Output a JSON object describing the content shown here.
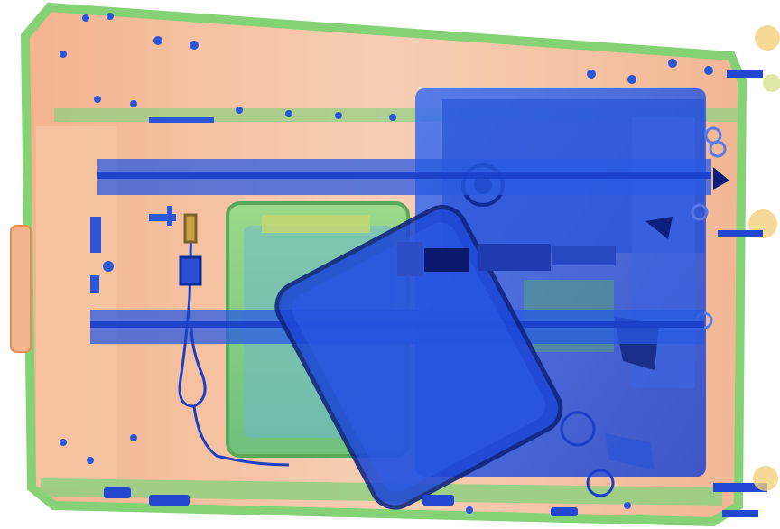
{
  "image": {
    "kind": "x-ray-baggage-scan",
    "palette": {
      "background": "#ffffff",
      "organic_orange": "#f2b48f",
      "organic_light": "#f8d8c0",
      "mixed_green": "#8fd080",
      "metal_blue": "#2f5fe0",
      "dense_blue": "#1a3fc8",
      "dark_core": "#0b1a6e"
    },
    "objects": [
      {
        "name": "suitcase-shell"
      },
      {
        "name": "suitcase-frame-rail-upper"
      },
      {
        "name": "suitcase-frame-rail-lower"
      },
      {
        "name": "laptop-electronics"
      },
      {
        "name": "tablet-device"
      },
      {
        "name": "charging-cable"
      },
      {
        "name": "green-electronics-board"
      },
      {
        "name": "handle-assembly-right"
      }
    ]
  }
}
